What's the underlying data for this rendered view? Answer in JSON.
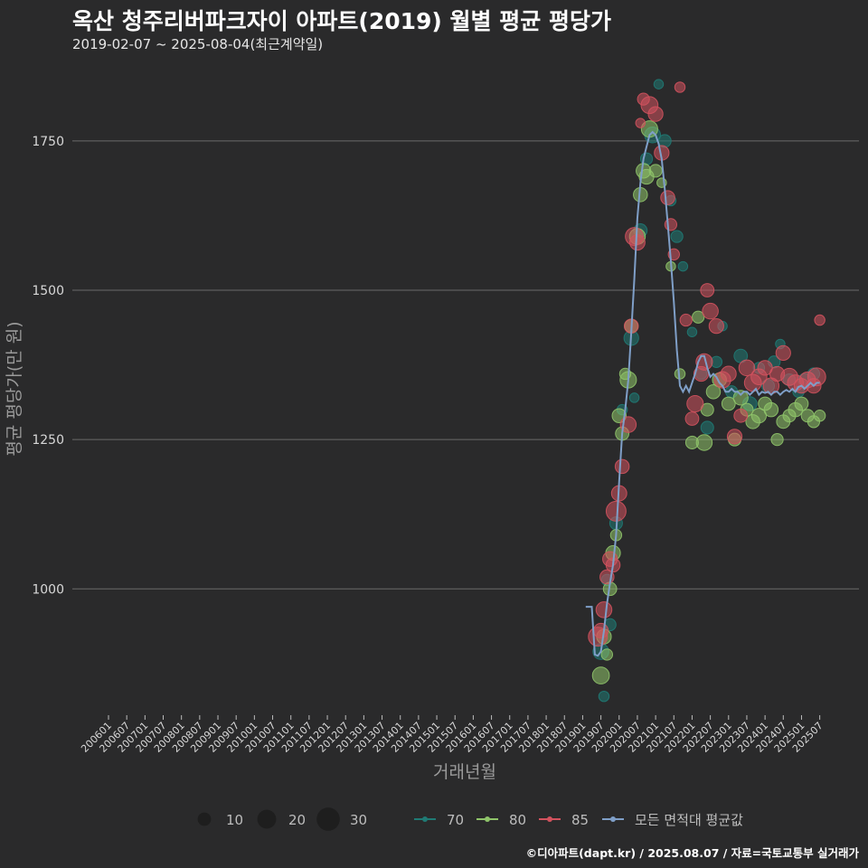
{
  "title": "옥산 청주리버파크자이 아파트(2019) 월별 평균 평당가",
  "subtitle": "2019-02-07 ~ 2025-08-04(최근계약일)",
  "caption": "©디아파트(dapt.kr) / 2025.08.07 / 자료=국토교통부 실거래가",
  "colors": {
    "background": "#2a2a2b",
    "grid": "#6b6b6b",
    "s70": "#1f7a74",
    "s80": "#8fc46a",
    "s85": "#d2525e",
    "avg": "#7f9fc8",
    "axis_text": "#d8d8d8",
    "axis_title": "#9a9a9a"
  },
  "chart_data": {
    "type": "scatter",
    "xlabel": "거래년월",
    "ylabel": "평균 평당가(만 원)",
    "ylim": [
      790,
      1880
    ],
    "yticks": [
      1000,
      1250,
      1500,
      1750
    ],
    "x_range": [
      "2006-01",
      "2025-08"
    ],
    "x_tick_labels": [
      "200601",
      "200607",
      "200701",
      "200707",
      "200801",
      "200807",
      "200901",
      "200907",
      "201001",
      "201007",
      "201101",
      "201107",
      "201201",
      "201207",
      "201301",
      "201307",
      "201401",
      "201407",
      "201501",
      "201507",
      "201601",
      "201607",
      "201701",
      "201707",
      "201801",
      "201807",
      "201901",
      "201907",
      "202001",
      "202007",
      "202101",
      "202107",
      "202201",
      "202207",
      "202301",
      "202307",
      "202401",
      "202407",
      "202501",
      "202507"
    ],
    "size_legend": {
      "title": "",
      "items": [
        10,
        20,
        30
      ]
    },
    "series_legend": [
      "70",
      "80",
      "85",
      "모든 면적대 평균값"
    ],
    "series": [
      {
        "name": "70",
        "points": [
          [
            "2019-07",
            895,
            14
          ],
          [
            "2019-08",
            820,
            6
          ],
          [
            "2019-09",
            1015,
            7
          ],
          [
            "2019-10",
            940,
            8
          ],
          [
            "2019-12",
            1110,
            9
          ],
          [
            "2020-02",
            1300,
            6
          ],
          [
            "2020-05",
            1420,
            12
          ],
          [
            "2020-06",
            1320,
            5
          ],
          [
            "2020-08",
            1600,
            10
          ],
          [
            "2020-10",
            1720,
            8
          ],
          [
            "2020-12",
            1760,
            14
          ],
          [
            "2021-02",
            1845,
            5
          ],
          [
            "2021-04",
            1750,
            9
          ],
          [
            "2021-06",
            1650,
            6
          ],
          [
            "2021-08",
            1590,
            8
          ],
          [
            "2021-10",
            1540,
            5
          ],
          [
            "2022-01",
            1430,
            5
          ],
          [
            "2022-04",
            1360,
            7
          ],
          [
            "2022-06",
            1270,
            9
          ],
          [
            "2022-09",
            1380,
            7
          ],
          [
            "2022-11",
            1440,
            5
          ],
          [
            "2023-02",
            1330,
            8
          ],
          [
            "2023-05",
            1390,
            10
          ],
          [
            "2023-08",
            1310,
            11
          ],
          [
            "2023-11",
            1370,
            7
          ],
          [
            "2024-02",
            1340,
            9
          ],
          [
            "2024-04",
            1380,
            8
          ],
          [
            "2024-06",
            1410,
            5
          ],
          [
            "2024-09",
            1350,
            8
          ],
          [
            "2024-12",
            1330,
            7
          ],
          [
            "2025-02",
            1350,
            9
          ],
          [
            "2025-05",
            1360,
            8
          ]
        ]
      },
      {
        "name": "80",
        "points": [
          [
            "2019-07",
            855,
            16
          ],
          [
            "2019-08",
            920,
            12
          ],
          [
            "2019-09",
            890,
            7
          ],
          [
            "2019-10",
            1000,
            10
          ],
          [
            "2019-11",
            1060,
            12
          ],
          [
            "2019-12",
            1090,
            7
          ],
          [
            "2020-01",
            1290,
            11
          ],
          [
            "2020-02",
            1260,
            10
          ],
          [
            "2020-03",
            1360,
            7
          ],
          [
            "2020-04",
            1350,
            15
          ],
          [
            "2020-05",
            1440,
            10
          ],
          [
            "2020-07",
            1590,
            14
          ],
          [
            "2020-08",
            1660,
            11
          ],
          [
            "2020-09",
            1700,
            12
          ],
          [
            "2020-10",
            1690,
            12
          ],
          [
            "2020-11",
            1770,
            15
          ],
          [
            "2021-01",
            1700,
            9
          ],
          [
            "2021-03",
            1680,
            5
          ],
          [
            "2021-06",
            1540,
            5
          ],
          [
            "2021-09",
            1360,
            6
          ],
          [
            "2022-01",
            1245,
            9
          ],
          [
            "2022-03",
            1455,
            8
          ],
          [
            "2022-05",
            1245,
            14
          ],
          [
            "2022-06",
            1300,
            9
          ],
          [
            "2022-08",
            1330,
            11
          ],
          [
            "2022-10",
            1350,
            11
          ],
          [
            "2023-01",
            1310,
            10
          ],
          [
            "2023-03",
            1250,
            9
          ],
          [
            "2023-05",
            1320,
            12
          ],
          [
            "2023-07",
            1300,
            9
          ],
          [
            "2023-09",
            1280,
            11
          ],
          [
            "2023-11",
            1290,
            12
          ],
          [
            "2024-01",
            1310,
            10
          ],
          [
            "2024-03",
            1300,
            11
          ],
          [
            "2024-05",
            1250,
            8
          ],
          [
            "2024-07",
            1280,
            10
          ],
          [
            "2024-09",
            1290,
            9
          ],
          [
            "2024-11",
            1300,
            11
          ],
          [
            "2025-01",
            1310,
            10
          ],
          [
            "2025-03",
            1290,
            9
          ],
          [
            "2025-05",
            1280,
            8
          ],
          [
            "2025-07",
            1290,
            7
          ]
        ]
      },
      {
        "name": "85",
        "points": [
          [
            "2019-06",
            920,
            20
          ],
          [
            "2019-07",
            930,
            12
          ],
          [
            "2019-08",
            965,
            14
          ],
          [
            "2019-09",
            1020,
            11
          ],
          [
            "2019-10",
            1050,
            12
          ],
          [
            "2019-11",
            1040,
            11
          ],
          [
            "2019-12",
            1130,
            22
          ],
          [
            "2020-01",
            1160,
            13
          ],
          [
            "2020-02",
            1205,
            11
          ],
          [
            "2020-04",
            1275,
            14
          ],
          [
            "2020-05",
            1440,
            11
          ],
          [
            "2020-06",
            1590,
            18
          ],
          [
            "2020-07",
            1580,
            13
          ],
          [
            "2020-08",
            1780,
            5
          ],
          [
            "2020-09",
            1820,
            8
          ],
          [
            "2020-11",
            1810,
            16
          ],
          [
            "2021-01",
            1795,
            12
          ],
          [
            "2021-03",
            1730,
            12
          ],
          [
            "2021-05",
            1655,
            11
          ],
          [
            "2021-06",
            1610,
            8
          ],
          [
            "2021-07",
            1560,
            7
          ],
          [
            "2021-09",
            1840,
            6
          ],
          [
            "2021-11",
            1450,
            8
          ],
          [
            "2022-01",
            1285,
            10
          ],
          [
            "2022-02",
            1310,
            15
          ],
          [
            "2022-04",
            1360,
            12
          ],
          [
            "2022-05",
            1380,
            15
          ],
          [
            "2022-06",
            1500,
            10
          ],
          [
            "2022-07",
            1465,
            14
          ],
          [
            "2022-09",
            1440,
            12
          ],
          [
            "2022-11",
            1350,
            15
          ],
          [
            "2023-01",
            1360,
            13
          ],
          [
            "2023-03",
            1255,
            12
          ],
          [
            "2023-05",
            1290,
            10
          ],
          [
            "2023-07",
            1370,
            14
          ],
          [
            "2023-09",
            1345,
            16
          ],
          [
            "2023-11",
            1355,
            14
          ],
          [
            "2024-01",
            1370,
            12
          ],
          [
            "2024-03",
            1340,
            14
          ],
          [
            "2024-05",
            1360,
            12
          ],
          [
            "2024-07",
            1395,
            12
          ],
          [
            "2024-09",
            1355,
            16
          ],
          [
            "2024-11",
            1345,
            14
          ],
          [
            "2025-01",
            1340,
            12
          ],
          [
            "2025-03",
            1350,
            14
          ],
          [
            "2025-05",
            1340,
            12
          ],
          [
            "2025-06",
            1355,
            18
          ],
          [
            "2025-07",
            1450,
            6
          ]
        ]
      }
    ],
    "average_line": [
      [
        "2019-02",
        970
      ],
      [
        "2019-04",
        970
      ],
      [
        "2019-05",
        890
      ],
      [
        "2019-06",
        888
      ],
      [
        "2019-07",
        895
      ],
      [
        "2019-08",
        930
      ],
      [
        "2019-09",
        975
      ],
      [
        "2019-10",
        1010
      ],
      [
        "2019-11",
        1040
      ],
      [
        "2019-12",
        1090
      ],
      [
        "2020-01",
        1180
      ],
      [
        "2020-02",
        1260
      ],
      [
        "2020-03",
        1300
      ],
      [
        "2020-04",
        1350
      ],
      [
        "2020-05",
        1430
      ],
      [
        "2020-06",
        1520
      ],
      [
        "2020-07",
        1620
      ],
      [
        "2020-08",
        1680
      ],
      [
        "2020-09",
        1720
      ],
      [
        "2020-10",
        1740
      ],
      [
        "2020-11",
        1760
      ],
      [
        "2020-12",
        1765
      ],
      [
        "2021-01",
        1760
      ],
      [
        "2021-02",
        1745
      ],
      [
        "2021-03",
        1720
      ],
      [
        "2021-04",
        1670
      ],
      [
        "2021-05",
        1610
      ],
      [
        "2021-06",
        1550
      ],
      [
        "2021-07",
        1480
      ],
      [
        "2021-08",
        1400
      ],
      [
        "2021-09",
        1340
      ],
      [
        "2021-10",
        1330
      ],
      [
        "2021-11",
        1340
      ],
      [
        "2021-12",
        1330
      ],
      [
        "2022-01",
        1345
      ],
      [
        "2022-02",
        1360
      ],
      [
        "2022-03",
        1380
      ],
      [
        "2022-04",
        1390
      ],
      [
        "2022-05",
        1390
      ],
      [
        "2022-06",
        1370
      ],
      [
        "2022-07",
        1355
      ],
      [
        "2022-08",
        1360
      ],
      [
        "2022-09",
        1355
      ],
      [
        "2022-10",
        1345
      ],
      [
        "2022-11",
        1340
      ],
      [
        "2022-12",
        1330
      ],
      [
        "2023-01",
        1330
      ],
      [
        "2023-02",
        1335
      ],
      [
        "2023-03",
        1330
      ],
      [
        "2023-04",
        1330
      ],
      [
        "2023-05",
        1325
      ],
      [
        "2023-06",
        1330
      ],
      [
        "2023-07",
        1330
      ],
      [
        "2023-08",
        1325
      ],
      [
        "2023-09",
        1330
      ],
      [
        "2023-10",
        1335
      ],
      [
        "2023-11",
        1325
      ],
      [
        "2023-12",
        1330
      ],
      [
        "2024-01",
        1328
      ],
      [
        "2024-02",
        1330
      ],
      [
        "2024-03",
        1325
      ],
      [
        "2024-04",
        1330
      ],
      [
        "2024-05",
        1330
      ],
      [
        "2024-06",
        1325
      ],
      [
        "2024-07",
        1330
      ],
      [
        "2024-08",
        1333
      ],
      [
        "2024-09",
        1330
      ],
      [
        "2024-10",
        1335
      ],
      [
        "2024-11",
        1330
      ],
      [
        "2024-12",
        1338
      ],
      [
        "2025-01",
        1340
      ],
      [
        "2025-02",
        1335
      ],
      [
        "2025-03",
        1340
      ],
      [
        "2025-04",
        1345
      ],
      [
        "2025-05",
        1340
      ],
      [
        "2025-06",
        1345
      ],
      [
        "2025-07",
        1345
      ]
    ]
  }
}
